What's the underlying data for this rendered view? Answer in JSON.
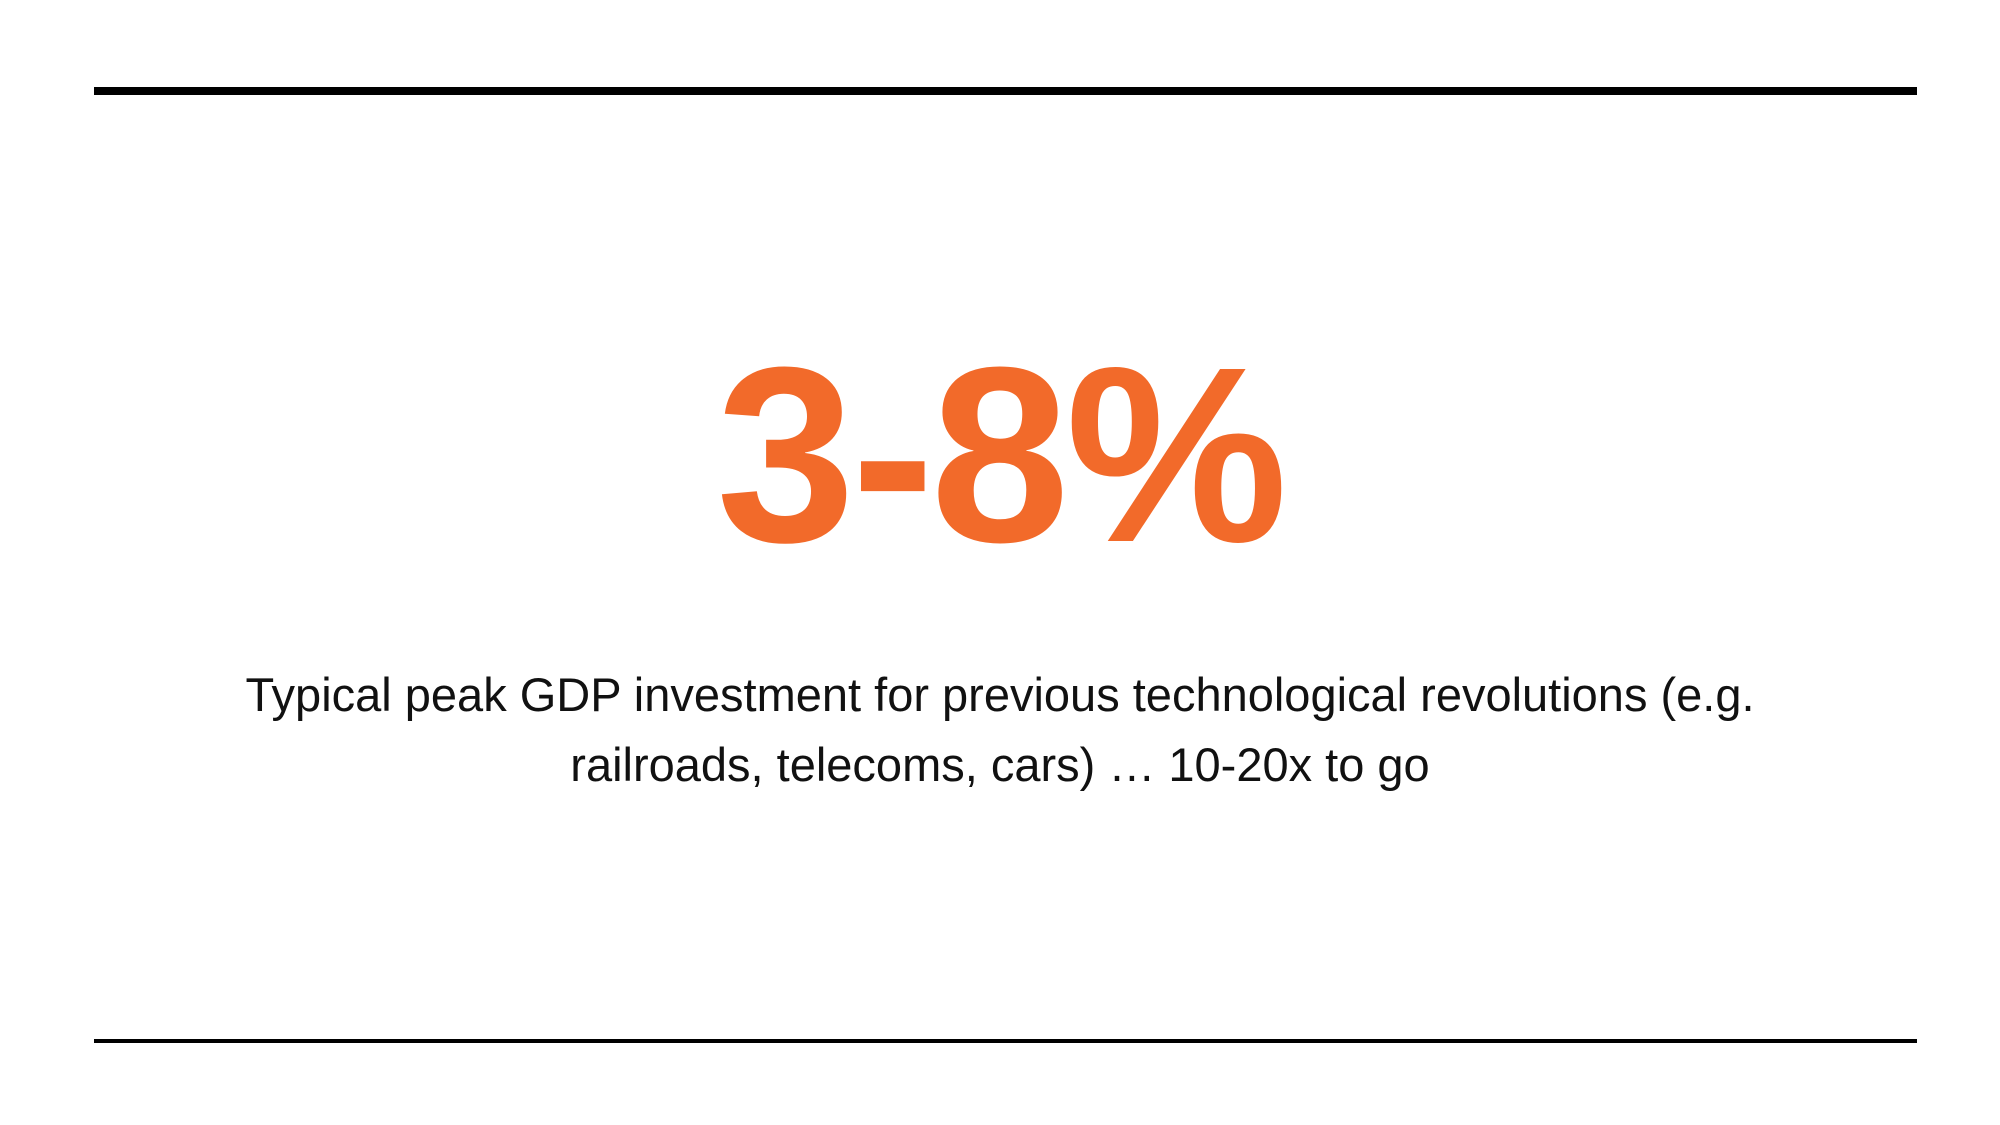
{
  "headline": "3-8%",
  "caption": {
    "lines": [
      "Typical peak GDP investment for previous technological revolutions (e.g.",
      "railroads, telecoms, cars) … 10-20x to go"
    ]
  }
}
